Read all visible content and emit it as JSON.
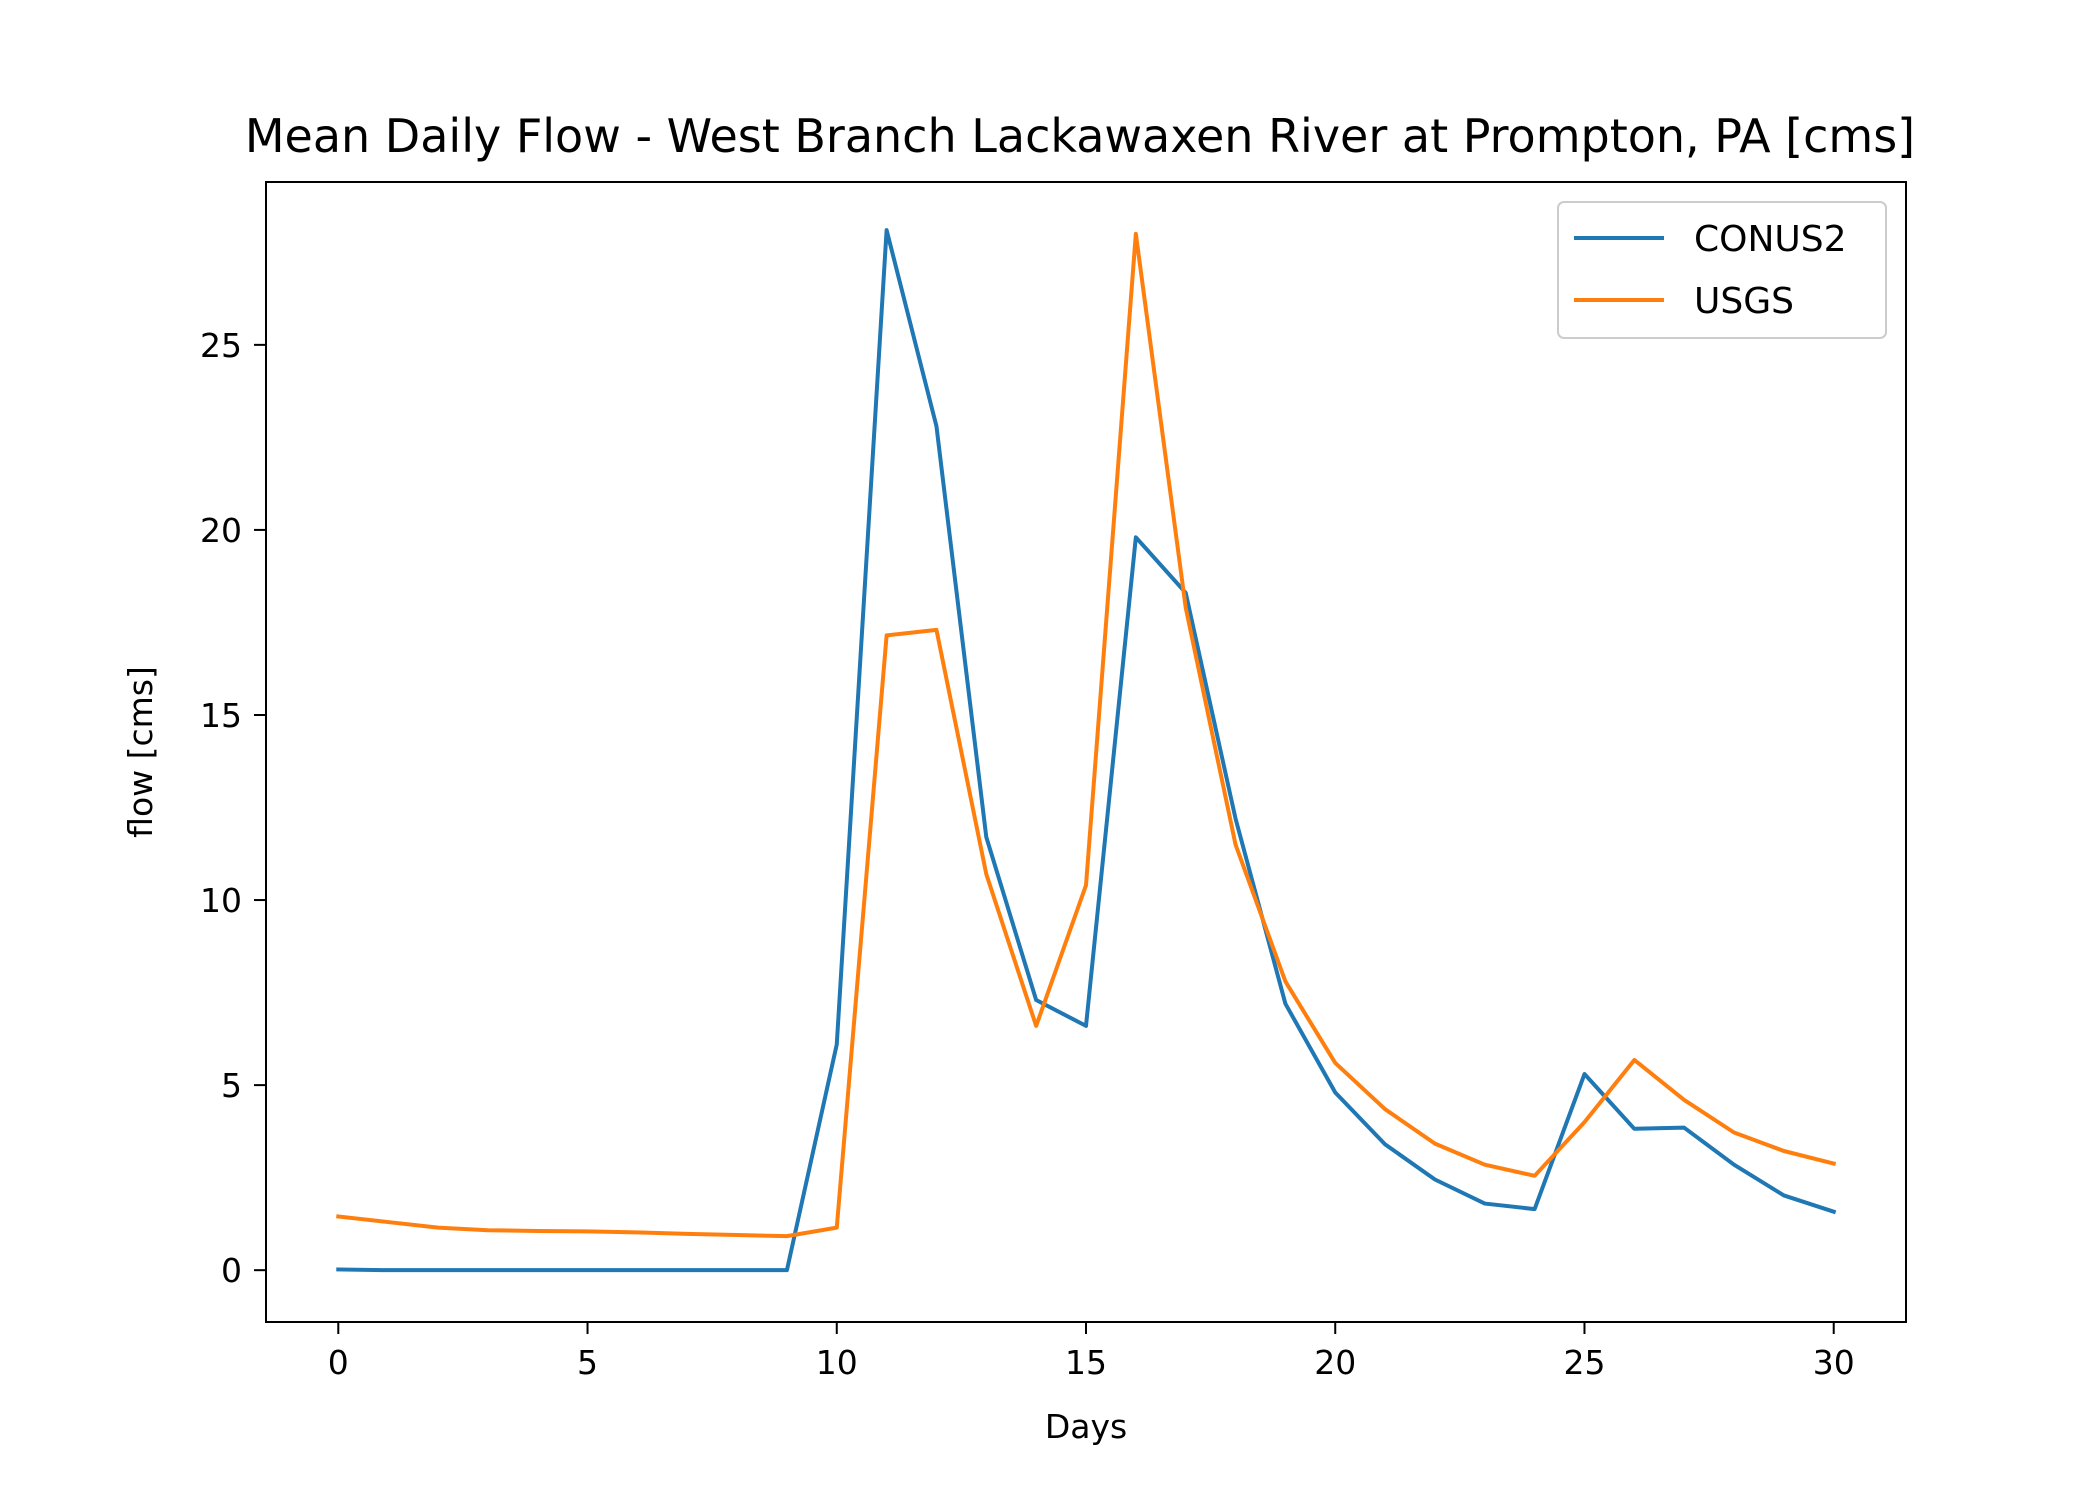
{
  "chart_data": {
    "type": "line",
    "title": "Mean Daily Flow - West Branch Lackawaxen River at Prompton, PA [cms]",
    "xlabel": "Days",
    "ylabel": "flow [cms]",
    "xlim": [
      -1.45,
      31.45
    ],
    "ylim": [
      -1.4,
      29.4
    ],
    "xticks": [
      0,
      5,
      10,
      15,
      20,
      25,
      30
    ],
    "yticks": [
      0,
      5,
      10,
      15,
      20,
      25
    ],
    "grid": false,
    "legend_position": "top-right",
    "x": [
      0,
      1,
      2,
      3,
      4,
      5,
      6,
      7,
      8,
      9,
      10,
      11,
      12,
      13,
      14,
      15,
      16,
      17,
      18,
      19,
      20,
      21,
      22,
      23,
      24,
      25,
      26,
      27,
      28,
      29,
      30
    ],
    "series": [
      {
        "name": "CONUS2",
        "color": "#1f77b4",
        "values": [
          0.02,
          0.0,
          0.0,
          0.0,
          0.0,
          0.0,
          0.0,
          0.0,
          0.0,
          0.0,
          6.1,
          28.1,
          22.8,
          11.7,
          7.3,
          6.6,
          19.8,
          18.3,
          12.2,
          7.2,
          4.8,
          3.4,
          2.45,
          1.8,
          1.65,
          5.3,
          3.82,
          3.85,
          2.85,
          2.02,
          1.58
        ]
      },
      {
        "name": "USGS",
        "color": "#ff7f0e",
        "values": [
          1.45,
          1.3,
          1.15,
          1.08,
          1.06,
          1.05,
          1.02,
          0.98,
          0.95,
          0.92,
          1.15,
          17.15,
          17.3,
          10.7,
          6.6,
          10.4,
          28.0,
          17.9,
          11.5,
          7.8,
          5.6,
          4.35,
          3.42,
          2.85,
          2.55,
          4.0,
          5.68,
          4.6,
          3.72,
          3.22,
          2.88
        ]
      }
    ]
  }
}
